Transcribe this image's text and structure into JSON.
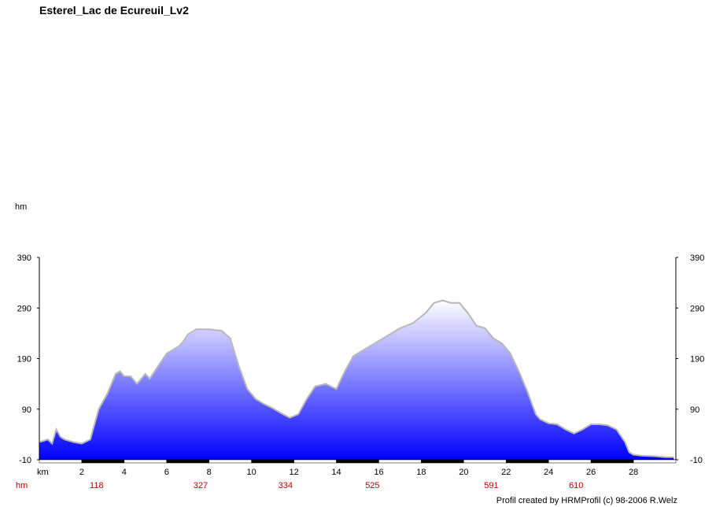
{
  "title": "Esterel_Lac de Ecureuil_Lv2",
  "credit": "Profil created by HRMProfil (c) 98-2006 R.Welz",
  "colors": {
    "fill_top": "#ffffff",
    "fill_bottom": "#0000ff",
    "outline": "#b8b8b8",
    "cumulative_text": "#c00000"
  },
  "chart_data": {
    "type": "area",
    "ylabel": "hm",
    "xlabel": "km",
    "cumulative_row_label": "hm",
    "ylim": [
      -10,
      390
    ],
    "y_ticks": [
      "390",
      "290",
      "190",
      "90",
      "-10"
    ],
    "x_ticks": [
      "2",
      "4",
      "6",
      "8",
      "10",
      "12",
      "14",
      "16",
      "18",
      "20",
      "22",
      "24",
      "26",
      "28"
    ],
    "xlim": [
      0,
      30
    ],
    "cumulative_ascent": [
      {
        "km": 2.7,
        "label": "118"
      },
      {
        "km": 7.6,
        "label": "327"
      },
      {
        "km": 11.6,
        "label": "334"
      },
      {
        "km": 15.7,
        "label": "525"
      },
      {
        "km": 21.3,
        "label": "591"
      },
      {
        "km": 25.3,
        "label": "610"
      }
    ],
    "series": [
      {
        "x": [
          0,
          0.4,
          0.6,
          0.8,
          1.0,
          1.2,
          1.6,
          2.0,
          2.4,
          2.8,
          3.2,
          3.6,
          3.8,
          4.0,
          4.3,
          4.6,
          5.0,
          5.2,
          5.6,
          6.0,
          6.4,
          6.6,
          6.8,
          7.0,
          7.4,
          8.0,
          8.6,
          9.0,
          9.4,
          9.8,
          10.2,
          10.6,
          11.0,
          11.4,
          11.8,
          12.2,
          12.6,
          13.0,
          13.5,
          14.0,
          14.4,
          14.8,
          15.2,
          15.8,
          16.4,
          17.0,
          17.6,
          18.2,
          18.6,
          19.0,
          19.4,
          19.8,
          20.2,
          20.6,
          21.0,
          21.4,
          21.8,
          22.2,
          22.6,
          23.0,
          23.4,
          23.6,
          24.0,
          24.4,
          24.8,
          25.2,
          25.6,
          26.0,
          26.4,
          26.8,
          27.2,
          27.6,
          27.8,
          28.0,
          28.4,
          29.0,
          29.5,
          29.9
        ],
        "values": [
          25,
          30,
          22,
          50,
          35,
          30,
          25,
          22,
          30,
          90,
          120,
          160,
          165,
          155,
          155,
          140,
          160,
          150,
          175,
          200,
          210,
          215,
          225,
          238,
          248,
          248,
          245,
          230,
          175,
          130,
          110,
          100,
          92,
          82,
          73,
          80,
          110,
          135,
          140,
          130,
          165,
          195,
          205,
          220,
          235,
          250,
          260,
          280,
          300,
          305,
          300,
          300,
          280,
          255,
          250,
          230,
          220,
          200,
          165,
          125,
          80,
          70,
          62,
          60,
          50,
          42,
          50,
          60,
          60,
          58,
          50,
          25,
          5,
          0,
          -2,
          -3,
          -5,
          -5
        ]
      }
    ]
  }
}
